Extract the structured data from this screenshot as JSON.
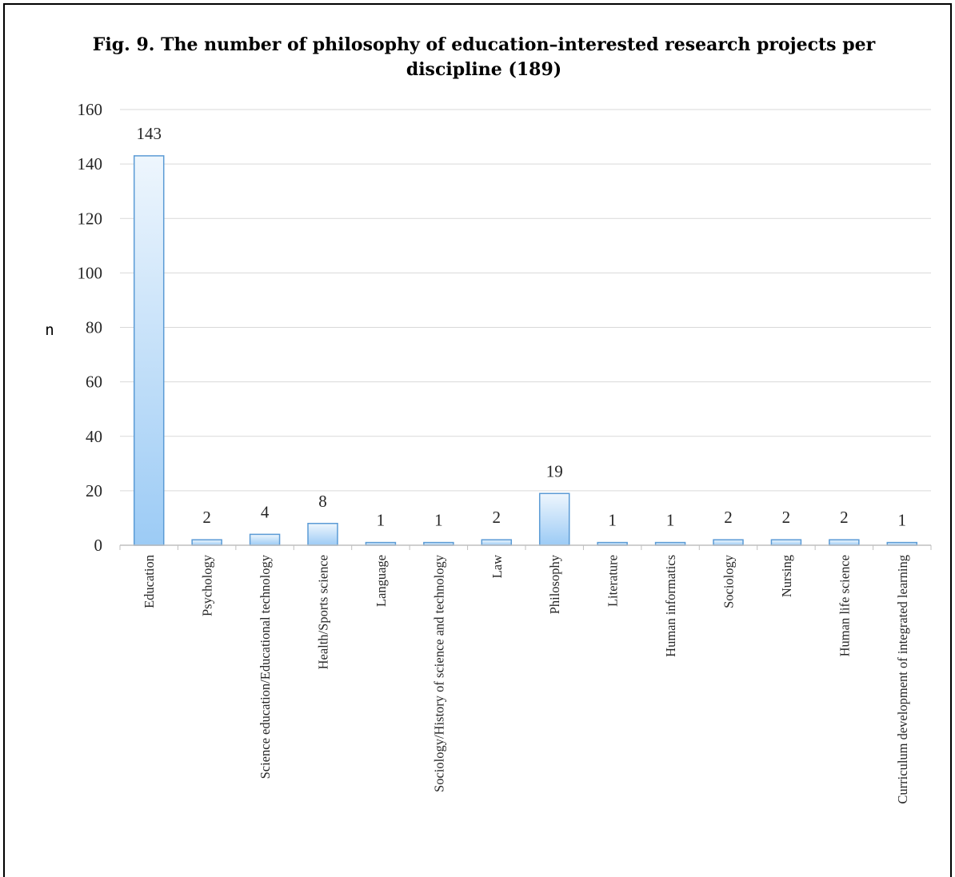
{
  "chart_data": {
    "type": "bar",
    "title": "Fig. 9. The number of philosophy of education–interested research projects per discipline (189)",
    "title_lines": [
      "Fig. 9. The number of philosophy of education–interested research projects per",
      "discipline (189)"
    ],
    "xlabel": "",
    "ylabel": "n",
    "ylim": [
      0,
      160
    ],
    "yticks": [
      0,
      20,
      40,
      60,
      80,
      100,
      120,
      140,
      160
    ],
    "grid": true,
    "legend": "none",
    "categories": [
      "Education",
      "Psychology",
      "Science education/Educational technology",
      "Health/Sports science",
      "Language",
      "Sociology/History of science and technology",
      "Law",
      "Philosophy",
      "Literature",
      "Human informatics",
      "Sociology",
      "Nursing",
      "Human life science",
      "Curriculum development of integrated learning"
    ],
    "values": [
      143,
      2,
      4,
      8,
      1,
      1,
      2,
      19,
      1,
      1,
      2,
      2,
      2,
      1
    ],
    "colors": {
      "bar_fill_top": "#eef6fd",
      "bar_fill_bottom": "#9ccbf5",
      "bar_stroke": "#5b9bd5",
      "grid": "#d9d9d9",
      "axis": "#bfbfbf"
    }
  }
}
